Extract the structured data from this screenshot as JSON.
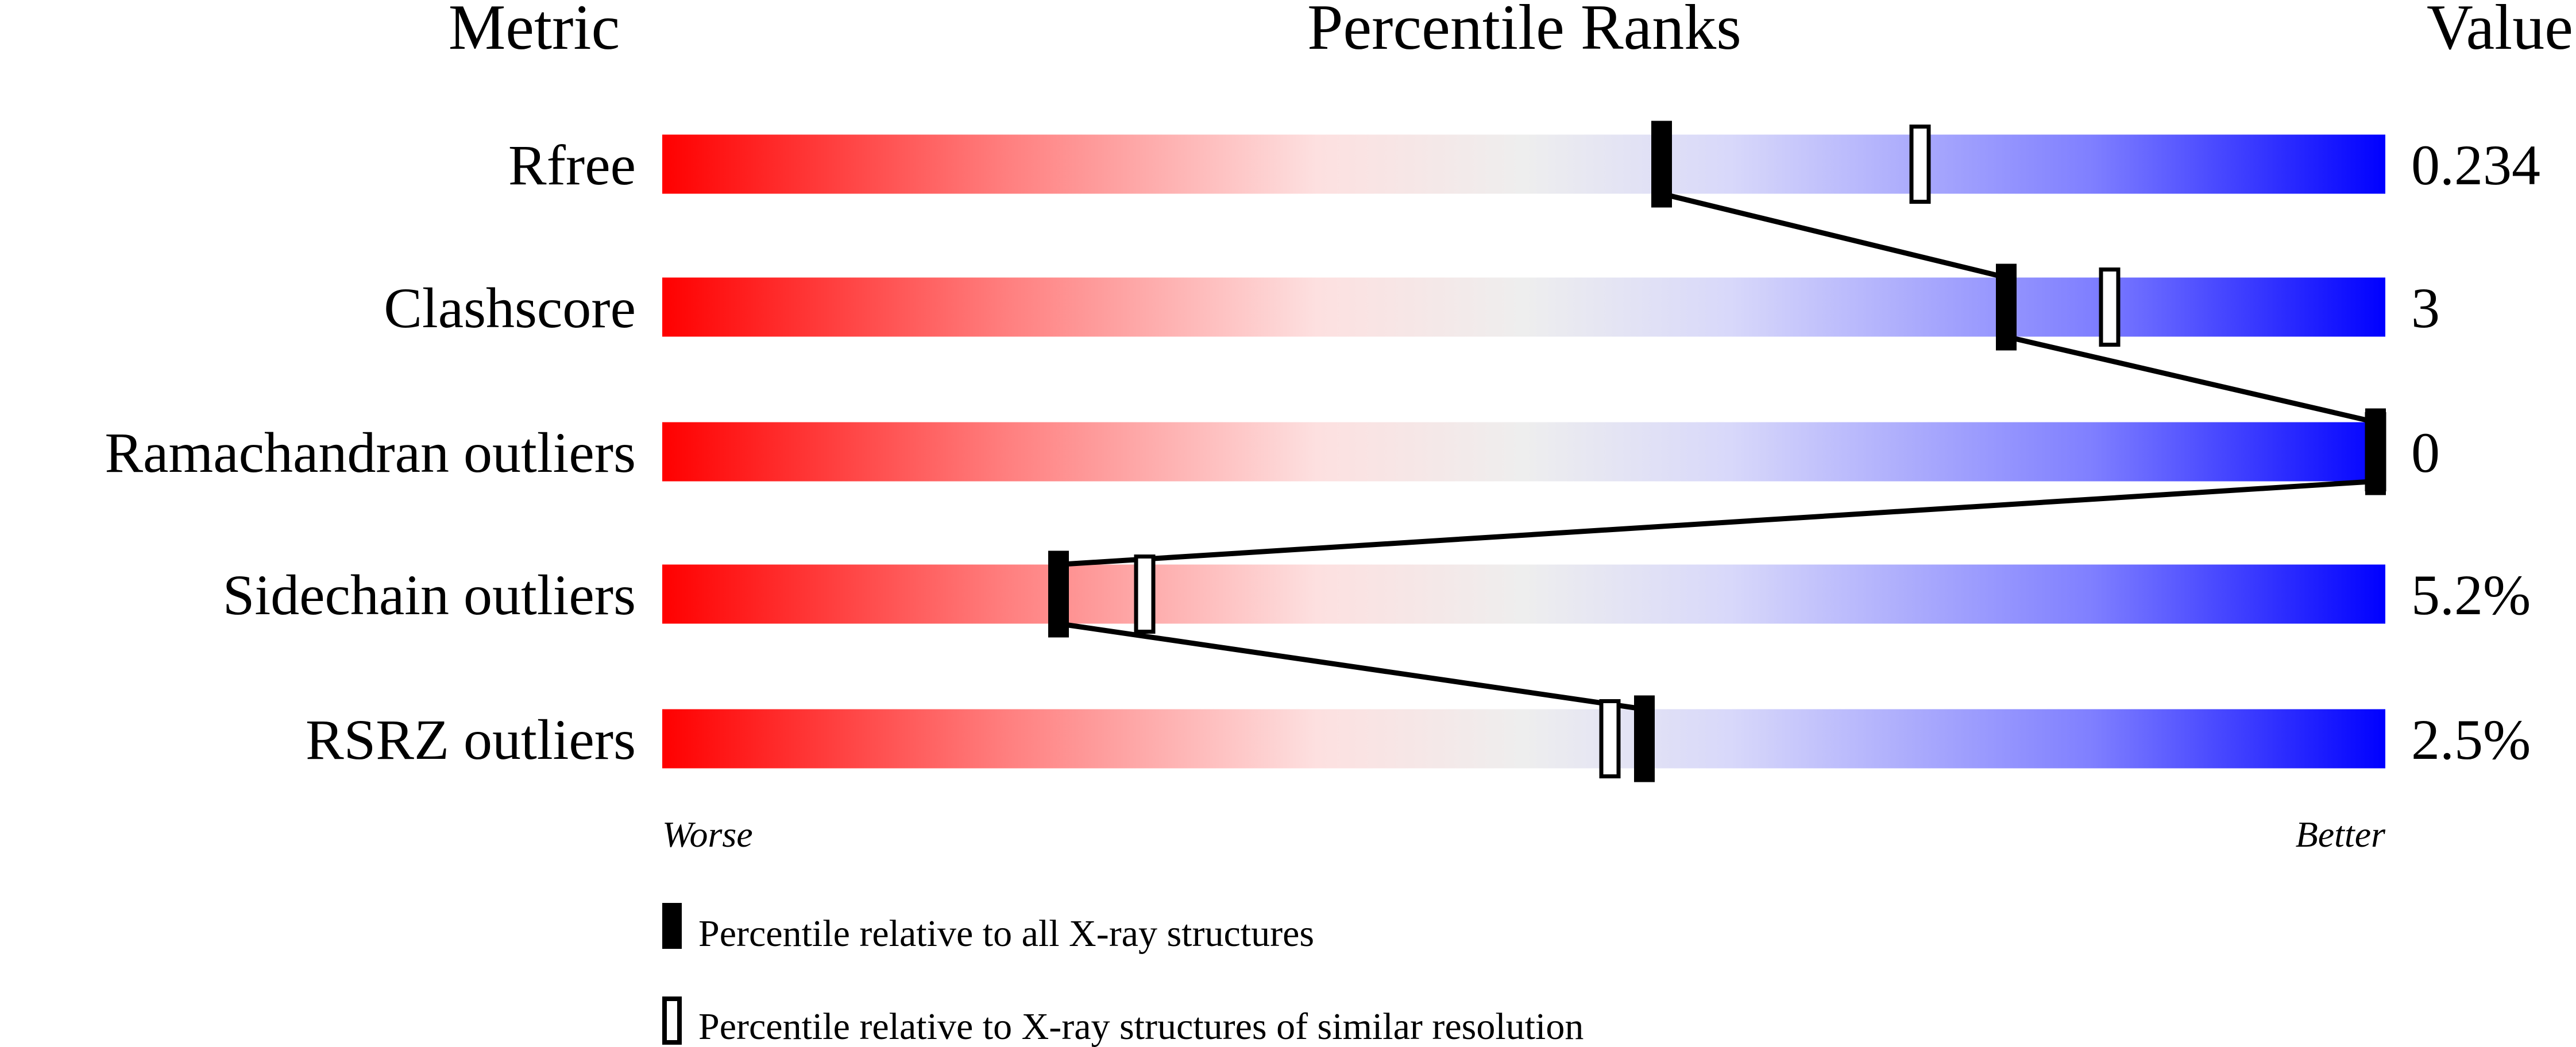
{
  "chart_data": {
    "type": "percentile-slider",
    "headers": {
      "metric": "Metric",
      "ranks": "Percentile Ranks",
      "value": "Value"
    },
    "xlim": [
      0,
      100
    ],
    "axis_labels": {
      "worse": "Worse",
      "better": "Better"
    },
    "gradient_colors": [
      "#ff0000",
      "#ff7f7f",
      "#fde0e0",
      "#eeeeee",
      "#d8d8fa",
      "#7f7fff",
      "#0000ff"
    ],
    "rows": [
      {
        "metric": "Rfree",
        "value": "0.234",
        "percentile_all": 58,
        "percentile_similar": 73
      },
      {
        "metric": "Clashscore",
        "value": "3",
        "percentile_all": 78,
        "percentile_similar": 84
      },
      {
        "metric": "Ramachandran outliers",
        "value": "0",
        "percentile_all": 100,
        "percentile_similar": 100
      },
      {
        "metric": "Sidechain outliers",
        "value": "5.2%",
        "percentile_all": 23,
        "percentile_similar": 28
      },
      {
        "metric": "RSRZ outliers",
        "value": "2.5%",
        "percentile_all": 57,
        "percentile_similar": 55
      }
    ],
    "legend": {
      "filled": "Percentile relative to all X-ray structures",
      "open": "Percentile relative to X-ray structures of similar resolution"
    }
  }
}
